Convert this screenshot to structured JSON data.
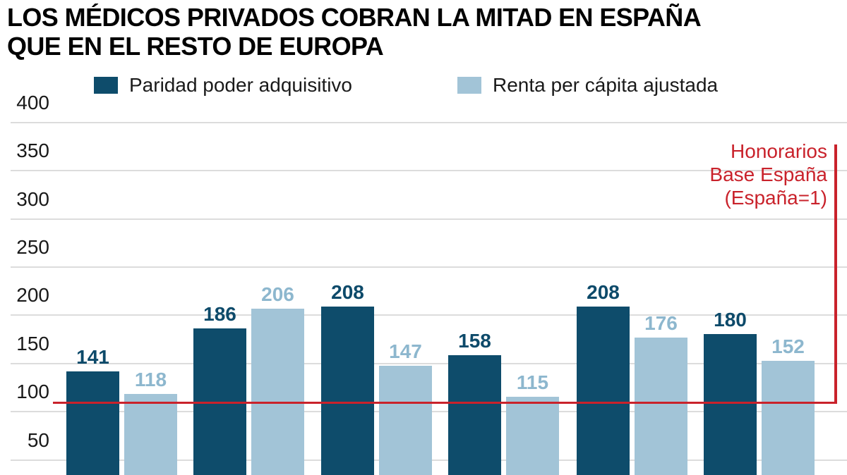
{
  "title": {
    "line1": "LOS MÉDICOS PRIVADOS COBRAN LA MITAD EN ESPAÑA",
    "line2": "QUE EN EL RESTO DE EUROPA"
  },
  "annotation": {
    "line1": "Honorarios",
    "line2": "Base España",
    "line3": "(España=1)"
  },
  "colors": {
    "series1": "#0e4c6b",
    "series2": "#a2c4d7",
    "series1_label": "#0d4a6a",
    "series2_label": "#8db7ce",
    "reference": "#c9222b",
    "gridline": "#dcdcdc",
    "axis_text": "#191919"
  },
  "chart_data": {
    "type": "bar",
    "title": "LOS MÉDICOS PRIVADOS COBRAN LA MITAD EN ESPAÑA QUE EN EL RESTO DE EUROPA",
    "series": [
      {
        "name": "Paridad poder adquisitivo",
        "color": "#0e4c6b",
        "values": [
          141,
          186,
          208,
          158,
          208,
          180
        ]
      },
      {
        "name": "Renta per cápita ajustada",
        "color": "#a2c4d7",
        "values": [
          118,
          206,
          147,
          115,
          176,
          152
        ]
      }
    ],
    "y_ticks": [
      400,
      350,
      300,
      250,
      200,
      150,
      100,
      50
    ],
    "ylim": [
      0,
      400
    ],
    "grid": true,
    "legend_position": "top",
    "reference_line": {
      "value": 100,
      "label": "Honorarios Base España (España=1)",
      "color": "#c9222b"
    }
  }
}
